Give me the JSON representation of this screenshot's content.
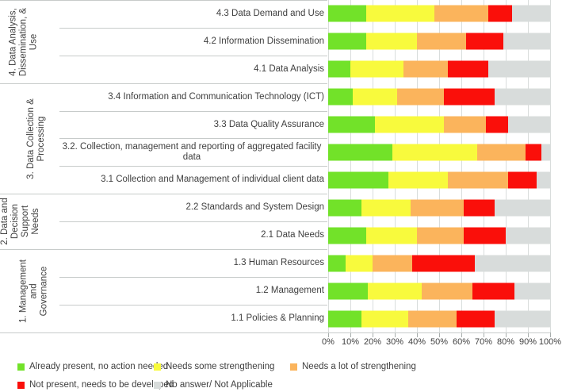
{
  "chart_data": {
    "type": "bar",
    "orientation": "horizontal",
    "stacked": true,
    "title": "",
    "xlabel": "",
    "ylabel": "",
    "xlim": [
      0,
      100
    ],
    "grid": true,
    "legend_position": "bottom",
    "x_ticks": [
      "0%",
      "10%",
      "20%",
      "30%",
      "40%",
      "50%",
      "60%",
      "70%",
      "80%",
      "90%",
      "100%"
    ],
    "groups": [
      {
        "label": "4. Data Analysis,\nDissemination, &\nUse",
        "category_indexes": [
          0,
          1,
          2
        ]
      },
      {
        "label": "3. Data Collection &\nProcessing",
        "category_indexes": [
          3,
          4,
          5,
          6
        ]
      },
      {
        "label": "2. Data and\nDecision\nSupport\nNeeds",
        "category_indexes": [
          7,
          8
        ]
      },
      {
        "label": "1. Management and\nGovernance",
        "category_indexes": [
          9,
          10,
          11
        ]
      }
    ],
    "categories": [
      "4.3 Data Demand and Use",
      "4.2 Information Dissemination",
      "4.1 Data Analysis",
      "3.4 Information and Communication Technology (ICT)",
      "3.3 Data Quality Assurance",
      "3.2. Collection, management and reporting of aggregated facility data",
      "3.1 Collection and Management of individual client data",
      "2.2 Standards and System Design",
      "2.1 Data Needs",
      "1.3 Human Resources",
      "1.2 Management",
      "1.1 Policies & Planning"
    ],
    "series": [
      {
        "name": "Already present, no action needed",
        "color": "#72E229",
        "values": [
          17,
          17,
          10,
          11,
          21,
          29,
          27,
          15,
          17,
          8,
          18,
          15
        ]
      },
      {
        "name": "Needs some strengthening",
        "color": "#F8FA3D",
        "values": [
          31,
          23,
          24,
          20,
          31,
          38,
          27,
          22,
          23,
          12,
          24,
          21
        ]
      },
      {
        "name": "Needs a lot of strengthening",
        "color": "#FBB45C",
        "values": [
          24,
          22,
          20,
          21,
          19,
          22,
          27,
          24,
          21,
          18,
          23,
          22
        ]
      },
      {
        "name": "Not present, needs to be developed",
        "color": "#FA0F0A",
        "values": [
          11,
          17,
          18,
          23,
          10,
          7,
          13,
          14,
          19,
          28,
          19,
          17
        ]
      },
      {
        "name": "No answer/ Not Applicable",
        "color": "#D8DCDB",
        "values": [
          17,
          21,
          28,
          25,
          19,
          4,
          6,
          25,
          20,
          34,
          16,
          25
        ]
      }
    ]
  }
}
